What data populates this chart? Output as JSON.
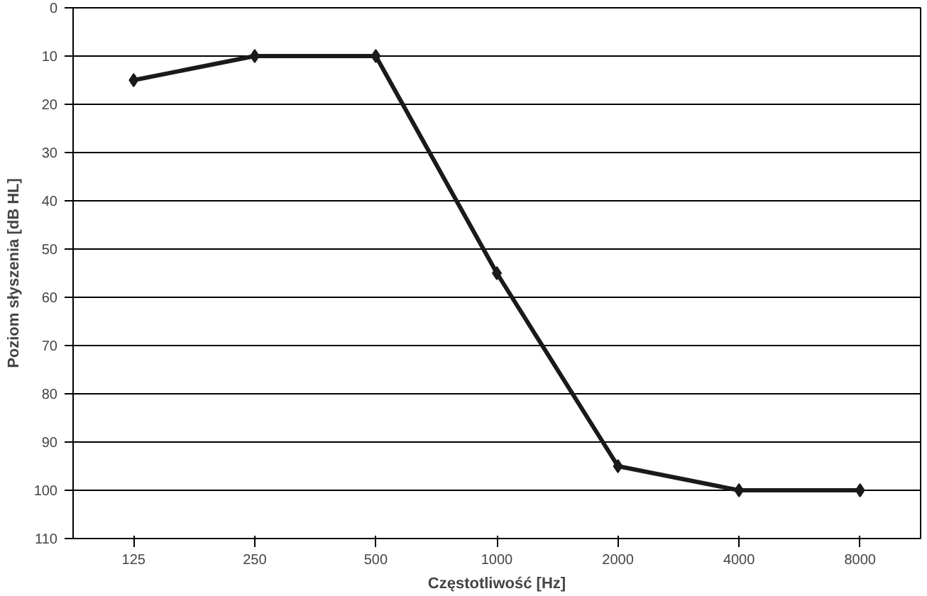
{
  "chart_data": {
    "type": "line",
    "xlabel": "Częstotliwość [Hz]",
    "ylabel": "Poziom słyszenia [dB HL]",
    "categories": [
      "125",
      "250",
      "500",
      "1000",
      "2000",
      "4000",
      "8000"
    ],
    "series": [
      {
        "color": "#1a1a1a",
        "values": [
          15,
          10,
          10,
          55,
          95,
          100,
          100
        ]
      }
    ],
    "ylim": [
      110,
      0
    ],
    "yticks": [
      0,
      10,
      20,
      30,
      40,
      50,
      60,
      70,
      80,
      90,
      100,
      110
    ],
    "grid": "y",
    "marker": "diamond",
    "line_style": "solid"
  }
}
